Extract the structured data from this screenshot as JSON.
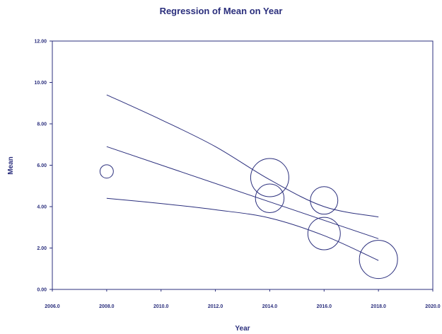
{
  "chart_data": {
    "type": "scatter",
    "title": "Regression of Mean on Year",
    "xlabel": "Year",
    "ylabel": "Mean",
    "xlim": [
      2006,
      2020
    ],
    "ylim": [
      0,
      12
    ],
    "x_ticks": [
      "2006.0",
      "2008.0",
      "2010.0",
      "2012.0",
      "2014.0",
      "2016.0",
      "2018.0",
      "2020.0"
    ],
    "y_ticks": [
      "0.00",
      "2.00",
      "4.00",
      "6.00",
      "8.00",
      "10.00",
      "12.00"
    ],
    "grid": false,
    "color": "#2b2f7d",
    "points": [
      {
        "x": 2008,
        "y": 5.7,
        "size": 0.35
      },
      {
        "x": 2014,
        "y": 5.4,
        "size": 1.0
      },
      {
        "x": 2014,
        "y": 4.4,
        "size": 0.75
      },
      {
        "x": 2016,
        "y": 4.3,
        "size": 0.72
      },
      {
        "x": 2016,
        "y": 2.7,
        "size": 0.85
      },
      {
        "x": 2018,
        "y": 1.45,
        "size": 1.0
      }
    ],
    "regression_line": [
      {
        "x": 2008,
        "y": 6.9
      },
      {
        "x": 2018,
        "y": 2.45
      }
    ],
    "upper_band": [
      {
        "x": 2008,
        "y": 9.4
      },
      {
        "x": 2010,
        "y": 8.2
      },
      {
        "x": 2012,
        "y": 6.9
      },
      {
        "x": 2014,
        "y": 5.3
      },
      {
        "x": 2016,
        "y": 4.0
      },
      {
        "x": 2018,
        "y": 3.5
      }
    ],
    "lower_band": [
      {
        "x": 2008,
        "y": 4.4
      },
      {
        "x": 2010,
        "y": 4.15
      },
      {
        "x": 2012,
        "y": 3.85
      },
      {
        "x": 2014,
        "y": 3.45
      },
      {
        "x": 2016,
        "y": 2.6
      },
      {
        "x": 2018,
        "y": 1.4
      }
    ]
  }
}
